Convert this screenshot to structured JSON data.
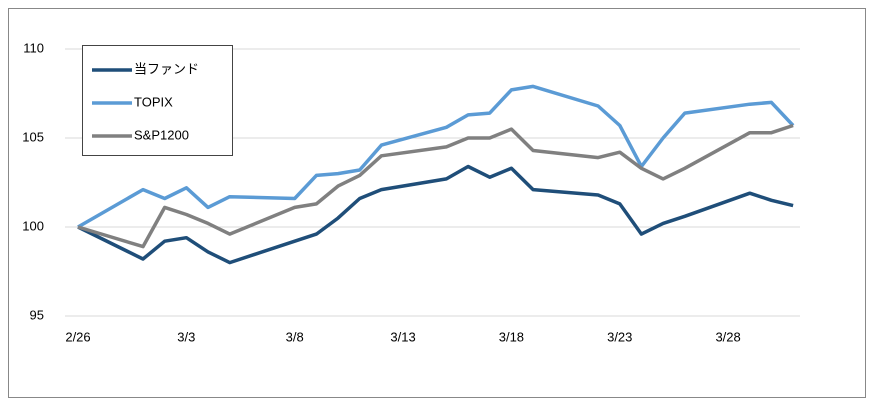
{
  "chart_data": {
    "type": "line",
    "x": [
      "2/26",
      "3/1",
      "3/2",
      "3/3",
      "3/4",
      "3/5",
      "3/8",
      "3/9",
      "3/10",
      "3/11",
      "3/12",
      "3/15",
      "3/16",
      "3/17",
      "3/18",
      "3/19",
      "3/22",
      "3/23",
      "3/24",
      "3/25",
      "3/26",
      "3/29",
      "3/30",
      "3/31"
    ],
    "series": [
      {
        "name": "当ファンド",
        "color": "#1f4e79",
        "values": [
          100,
          98.2,
          99.2,
          99.4,
          98.6,
          98.0,
          99.2,
          99.6,
          100.5,
          101.6,
          102.1,
          102.7,
          103.4,
          102.8,
          103.3,
          102.1,
          101.8,
          101.3,
          99.6,
          100.2,
          100.6,
          101.9,
          101.5,
          101.2
        ]
      },
      {
        "name": "TOPIX",
        "color": "#5b9bd5",
        "values": [
          100,
          102.1,
          101.6,
          102.2,
          101.1,
          101.7,
          101.6,
          102.9,
          103.0,
          103.2,
          104.6,
          105.6,
          106.3,
          106.4,
          107.7,
          107.9,
          106.8,
          105.7,
          103.4,
          105.0,
          106.4,
          106.9,
          107.0,
          105.7
        ]
      },
      {
        "name": "S&P1200",
        "color": "#808080",
        "values": [
          100,
          98.9,
          101.1,
          100.7,
          100.2,
          99.6,
          101.1,
          101.3,
          102.3,
          102.9,
          104.0,
          104.5,
          105.0,
          105.0,
          105.5,
          104.3,
          103.9,
          104.2,
          103.3,
          102.7,
          103.3,
          105.3,
          105.3,
          105.7
        ]
      }
    ],
    "xticks": [
      "2/26",
      "3/3",
      "3/8",
      "3/13",
      "3/18",
      "3/23",
      "3/28"
    ],
    "ylim": [
      95,
      110
    ],
    "yticks": [
      95,
      100,
      105,
      110
    ],
    "grid": true,
    "legend": "upper-left"
  }
}
